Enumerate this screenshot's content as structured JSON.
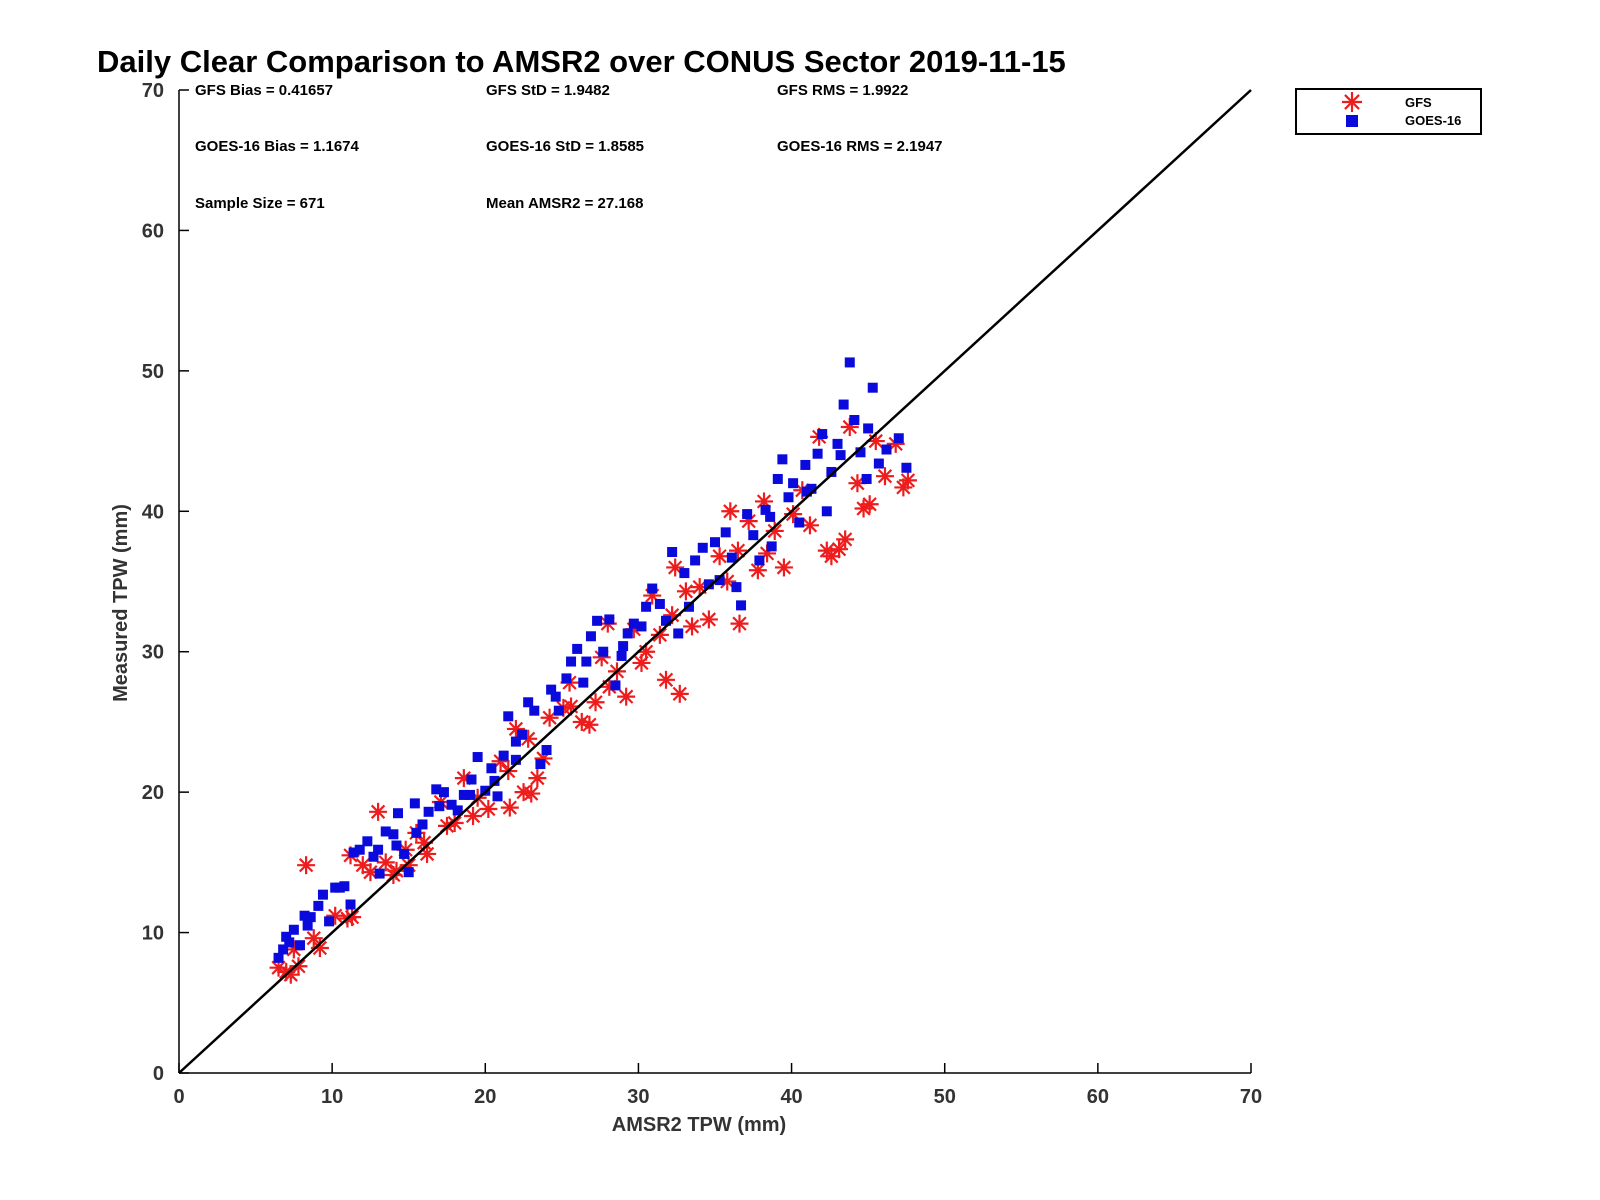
{
  "chart_data": {
    "type": "scatter",
    "title": "Daily Clear Comparison to AMSR2 over CONUS Sector 2019-11-15",
    "xlabel": "AMSR2 TPW (mm)",
    "ylabel": "Measured TPW (mm)",
    "xlim": [
      0,
      70
    ],
    "ylim": [
      0,
      70
    ],
    "xticks": [
      0,
      10,
      20,
      30,
      40,
      50,
      60,
      70
    ],
    "yticks": [
      0,
      10,
      20,
      30,
      40,
      50,
      60,
      70
    ],
    "reference_line": {
      "from": [
        0,
        0
      ],
      "to": [
        70,
        70
      ]
    },
    "legend": {
      "position": "top-right-outside",
      "entries": [
        {
          "label": "GFS",
          "marker": "asterisk",
          "color": "#ee1c1c"
        },
        {
          "label": "GOES-16",
          "marker": "square",
          "color": "#0a0adc"
        }
      ]
    },
    "stats": {
      "gfs_bias": "GFS Bias = 0.41657",
      "gfs_std": "GFS StD = 1.9482",
      "gfs_rms": "GFS RMS = 1.9922",
      "goes_bias": "GOES-16 Bias = 1.1674",
      "goes_std": "GOES-16 StD = 1.8585",
      "goes_rms": "GOES-16 RMS = 2.1947",
      "sample_size": "Sample Size = 671",
      "mean_amsr2": "Mean AMSR2 = 27.168"
    },
    "series": [
      {
        "name": "GFS",
        "color": "#ee1c1c",
        "marker": "asterisk",
        "points": [
          [
            6.5,
            7.5
          ],
          [
            7,
            7.2
          ],
          [
            7.3,
            7.0
          ],
          [
            7.8,
            7.6
          ],
          [
            8.3,
            14.8
          ],
          [
            9.2,
            8.9
          ],
          [
            10.2,
            11.2
          ],
          [
            11.3,
            11.1
          ],
          [
            11.2,
            15.5
          ],
          [
            12.5,
            14.3
          ],
          [
            13,
            18.6
          ],
          [
            13.5,
            15.0
          ],
          [
            14.2,
            14.4
          ],
          [
            14.8,
            15.9
          ],
          [
            15.5,
            17.1
          ],
          [
            16.2,
            15.6
          ],
          [
            17.1,
            19.3
          ],
          [
            18.0,
            17.8
          ],
          [
            18.6,
            21.0
          ],
          [
            19.2,
            18.3
          ],
          [
            20.2,
            18.8
          ],
          [
            21,
            22.2
          ],
          [
            21.6,
            18.9
          ],
          [
            22.0,
            24.5
          ],
          [
            22.5,
            20.0
          ],
          [
            23,
            19.9
          ],
          [
            23.4,
            21.0
          ],
          [
            23.8,
            22.4
          ],
          [
            24.2,
            25.3
          ],
          [
            25.1,
            26.0
          ],
          [
            25.6,
            26.1
          ],
          [
            26.3,
            25.0
          ],
          [
            26.8,
            24.8
          ],
          [
            27.2,
            26.4
          ],
          [
            27.6,
            29.6
          ],
          [
            28.1,
            27.5
          ],
          [
            28.6,
            28.6
          ],
          [
            29.2,
            26.8
          ],
          [
            29.7,
            31.6
          ],
          [
            30.2,
            29.2
          ],
          [
            30.9,
            34.0
          ],
          [
            31.4,
            31.2
          ],
          [
            31.8,
            28.0
          ],
          [
            32.2,
            32.6
          ],
          [
            32.7,
            27.0
          ],
          [
            32.4,
            36.0
          ],
          [
            33.1,
            34.3
          ],
          [
            33.5,
            31.8
          ],
          [
            34.0,
            34.6
          ],
          [
            34.6,
            32.3
          ],
          [
            35.3,
            36.8
          ],
          [
            35.8,
            35.0
          ],
          [
            36.5,
            37.2
          ],
          [
            36.6,
            32.0
          ],
          [
            37.2,
            39.3
          ],
          [
            37.8,
            35.8
          ],
          [
            38.4,
            37.0
          ],
          [
            38.9,
            38.6
          ],
          [
            39.5,
            36.0
          ],
          [
            40.1,
            39.8
          ],
          [
            40.7,
            41.5
          ],
          [
            41.2,
            39.0
          ],
          [
            41.8,
            45.3
          ],
          [
            42.3,
            37.2
          ],
          [
            42.6,
            36.8
          ],
          [
            43.1,
            37.3
          ],
          [
            43.5,
            38.0
          ],
          [
            43.8,
            46.0
          ],
          [
            44.3,
            42.0
          ],
          [
            44.7,
            40.2
          ],
          [
            45.1,
            40.5
          ],
          [
            45.5,
            45.0
          ],
          [
            46.1,
            42.5
          ],
          [
            46.8,
            44.8
          ],
          [
            47.3,
            41.7
          ],
          [
            47.6,
            42.2
          ],
          [
            38.2,
            40.7
          ],
          [
            36.0,
            40.0
          ],
          [
            30.5,
            30.0
          ],
          [
            28.0,
            32.0
          ],
          [
            25.5,
            27.8
          ],
          [
            22.8,
            23.8
          ],
          [
            21.5,
            21.5
          ],
          [
            19.5,
            19.6
          ],
          [
            17.5,
            17.6
          ],
          [
            16.0,
            16.4
          ],
          [
            15.0,
            14.8
          ],
          [
            14.0,
            14.1
          ],
          [
            12.0,
            14.8
          ],
          [
            11.0,
            11.0
          ],
          [
            8.8,
            9.6
          ],
          [
            7.5,
            8.8
          ]
        ]
      },
      {
        "name": "GOES-16",
        "color": "#0a0adc",
        "marker": "square",
        "points": [
          [
            6.5,
            8.2
          ],
          [
            6.8,
            8.8
          ],
          [
            7.2,
            9.3
          ],
          [
            7.5,
            10.2
          ],
          [
            7.9,
            9.1
          ],
          [
            8.2,
            11.2
          ],
          [
            8.6,
            11.1
          ],
          [
            9.1,
            11.9
          ],
          [
            9.4,
            12.7
          ],
          [
            9.8,
            10.8
          ],
          [
            10.2,
            13.2
          ],
          [
            10.8,
            13.3
          ],
          [
            11.2,
            12.0
          ],
          [
            11.8,
            15.9
          ],
          [
            12.3,
            16.5
          ],
          [
            12.7,
            15.4
          ],
          [
            13.1,
            14.2
          ],
          [
            13.5,
            17.2
          ],
          [
            14.0,
            17.0
          ],
          [
            14.3,
            18.5
          ],
          [
            14.7,
            15.6
          ],
          [
            15.0,
            14.3
          ],
          [
            15.4,
            19.2
          ],
          [
            15.9,
            17.7
          ],
          [
            16.3,
            18.6
          ],
          [
            16.8,
            20.2
          ],
          [
            17.3,
            20.0
          ],
          [
            17.8,
            19.1
          ],
          [
            18.2,
            18.7
          ],
          [
            18.6,
            19.8
          ],
          [
            19.1,
            20.9
          ],
          [
            19.5,
            22.5
          ],
          [
            20.0,
            20.1
          ],
          [
            20.4,
            21.7
          ],
          [
            20.8,
            19.7
          ],
          [
            21.2,
            22.6
          ],
          [
            21.5,
            25.4
          ],
          [
            22.0,
            23.6
          ],
          [
            22.4,
            24.1
          ],
          [
            22.8,
            26.4
          ],
          [
            23.2,
            25.8
          ],
          [
            23.6,
            22.0
          ],
          [
            24.0,
            23.0
          ],
          [
            24.3,
            27.3
          ],
          [
            24.8,
            25.8
          ],
          [
            25.3,
            28.1
          ],
          [
            25.6,
            29.3
          ],
          [
            26.0,
            30.2
          ],
          [
            26.4,
            27.8
          ],
          [
            26.9,
            31.1
          ],
          [
            27.3,
            32.2
          ],
          [
            27.7,
            30.0
          ],
          [
            28.1,
            32.3
          ],
          [
            28.5,
            27.6
          ],
          [
            28.9,
            29.7
          ],
          [
            29.3,
            31.3
          ],
          [
            29.7,
            32.0
          ],
          [
            30.2,
            31.8
          ],
          [
            30.5,
            33.2
          ],
          [
            30.9,
            34.5
          ],
          [
            31.4,
            33.4
          ],
          [
            31.8,
            32.2
          ],
          [
            32.2,
            37.1
          ],
          [
            32.6,
            31.3
          ],
          [
            33.0,
            35.6
          ],
          [
            33.3,
            33.2
          ],
          [
            33.7,
            36.5
          ],
          [
            34.2,
            37.4
          ],
          [
            34.6,
            34.8
          ],
          [
            35.0,
            37.8
          ],
          [
            35.3,
            35.1
          ],
          [
            35.7,
            38.5
          ],
          [
            36.1,
            36.7
          ],
          [
            36.4,
            34.6
          ],
          [
            36.7,
            33.3
          ],
          [
            37.1,
            39.8
          ],
          [
            37.5,
            38.3
          ],
          [
            37.9,
            36.5
          ],
          [
            38.3,
            40.1
          ],
          [
            38.7,
            37.5
          ],
          [
            39.1,
            42.3
          ],
          [
            39.4,
            43.7
          ],
          [
            39.8,
            41.0
          ],
          [
            40.1,
            42.0
          ],
          [
            40.5,
            39.2
          ],
          [
            40.9,
            43.3
          ],
          [
            41.3,
            41.6
          ],
          [
            41.7,
            44.1
          ],
          [
            42.0,
            45.5
          ],
          [
            42.3,
            40.0
          ],
          [
            42.6,
            42.8
          ],
          [
            43.0,
            44.8
          ],
          [
            43.4,
            47.6
          ],
          [
            43.8,
            50.6
          ],
          [
            44.1,
            46.5
          ],
          [
            44.5,
            44.2
          ],
          [
            44.9,
            42.3
          ],
          [
            45.3,
            48.8
          ],
          [
            45.7,
            43.4
          ],
          [
            46.2,
            44.4
          ],
          [
            47.0,
            45.2
          ],
          [
            47.5,
            43.1
          ],
          [
            29.0,
            30.4
          ],
          [
            26.6,
            29.3
          ],
          [
            24.6,
            26.8
          ],
          [
            22.0,
            22.3
          ],
          [
            20.6,
            20.8
          ],
          [
            19.0,
            19.8
          ],
          [
            17.0,
            19.0
          ],
          [
            15.5,
            17.1
          ],
          [
            14.2,
            16.2
          ],
          [
            13.0,
            15.9
          ],
          [
            11.4,
            15.7
          ],
          [
            10.5,
            13.2
          ],
          [
            8.4,
            10.5
          ],
          [
            7.0,
            9.7
          ],
          [
            38.6,
            39.6
          ],
          [
            41.0,
            41.4
          ],
          [
            43.2,
            44.0
          ],
          [
            45.0,
            45.9
          ]
        ]
      }
    ]
  }
}
